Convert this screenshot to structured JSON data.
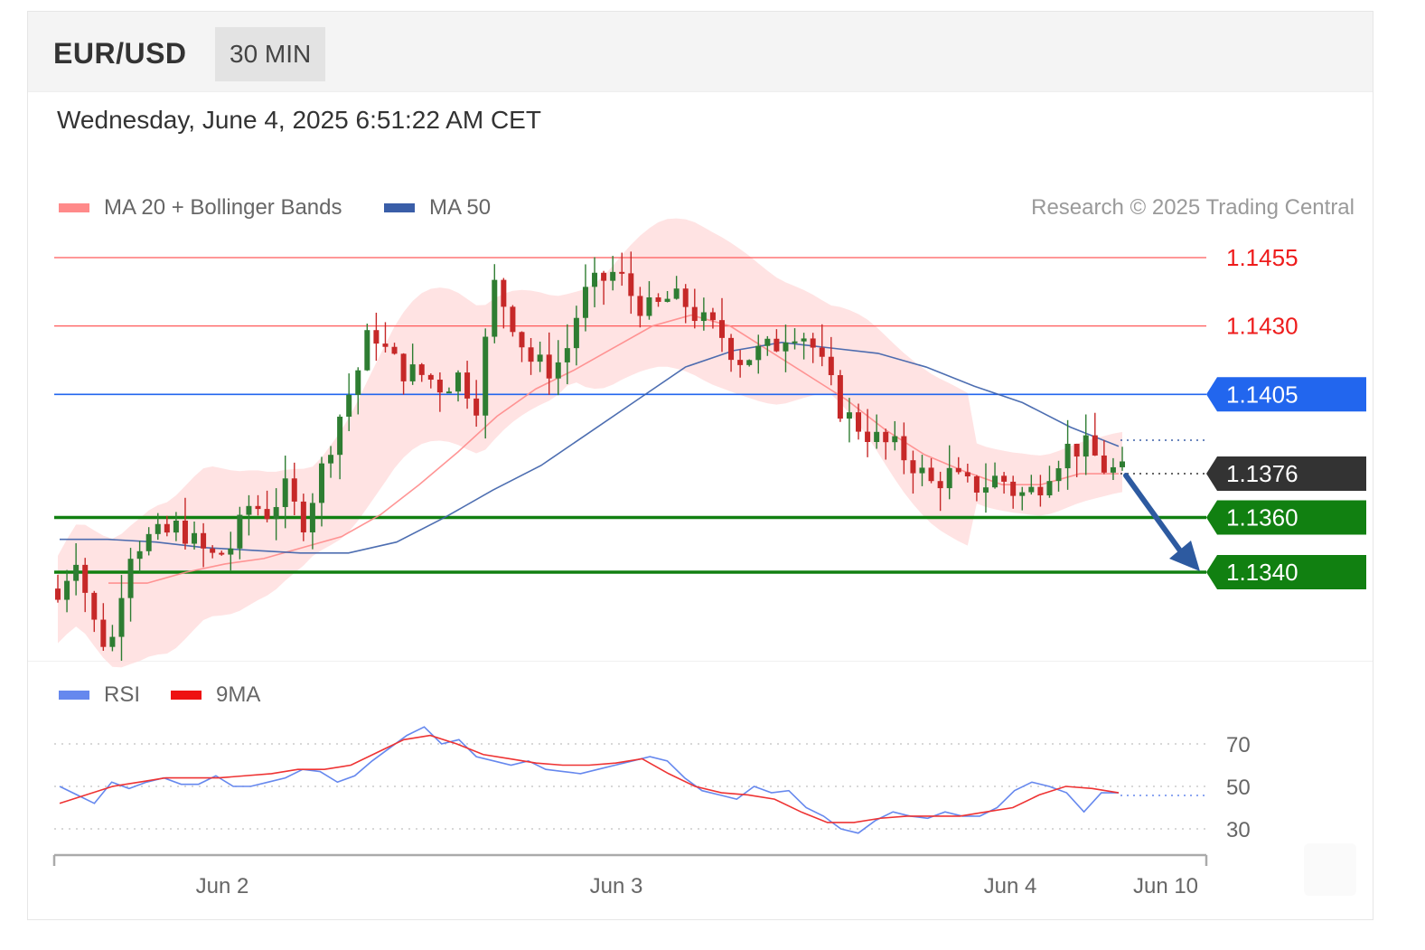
{
  "header": {
    "pair": "EUR/USD",
    "timeframe": "30 MIN"
  },
  "datetime": "Wednesday, June 4, 2025 6:51:22 AM CET",
  "legend": {
    "ma20": "MA 20 + Bollinger Bands",
    "ma50": "MA 50",
    "credit": "Research © 2025 Trading Central",
    "rsi": "RSI",
    "rsi_ma": "9MA"
  },
  "colors": {
    "ma20": "#ff8a8a",
    "ma50": "#3a5ea8",
    "band": "#ffd9d9",
    "up": "#2e7d32",
    "down": "#c62828",
    "resistance": "#ff5a5a",
    "pivot": "#2266ee",
    "support": "#118011",
    "current": "#333333",
    "arrow": "#2d5aa0",
    "rsi": "#6688ee",
    "rsi_ma": "#ee3333"
  },
  "chart_data": [
    {
      "type": "line",
      "subtype": "candlestick",
      "y_axis_range": [
        1.129,
        1.147
      ],
      "x_labels": [
        "Jun 2",
        "Jun 3",
        "Jun 4",
        "Jun 10"
      ],
      "levels": [
        {
          "label": "1.1455",
          "value": 1.1455,
          "kind": "resistance"
        },
        {
          "label": "1.1430",
          "value": 1.143,
          "kind": "resistance"
        },
        {
          "label": "1.1405",
          "value": 1.1405,
          "kind": "pivot"
        },
        {
          "label": "1.1376",
          "value": 1.1376,
          "kind": "current"
        },
        {
          "label": "1.1360",
          "value": 1.136,
          "kind": "support"
        },
        {
          "label": "1.1340",
          "value": 1.134,
          "kind": "support"
        }
      ],
      "close_path": [
        1.133,
        1.1348,
        1.1322,
        1.1311,
        1.1348,
        1.1352,
        1.1353,
        1.1357,
        1.1349,
        1.1345,
        1.135,
        1.1365,
        1.1362,
        1.137,
        1.1358,
        1.1375,
        1.1395,
        1.141,
        1.143,
        1.1418,
        1.1413,
        1.1412,
        1.1408,
        1.1412,
        1.1402,
        1.1445,
        1.1433,
        1.1418,
        1.1414,
        1.1418,
        1.144,
        1.1446,
        1.145,
        1.144,
        1.1435,
        1.144,
        1.1438,
        1.1431,
        1.1427,
        1.1418,
        1.142,
        1.1422,
        1.143,
        1.1426,
        1.1412,
        1.1398,
        1.1393,
        1.1388,
        1.1385,
        1.138,
        1.1372,
        1.1376,
        1.1371,
        1.1372,
        1.1375,
        1.1368,
        1.137,
        1.138,
        1.1386,
        1.1385,
        1.1378,
        1.1376
      ],
      "series": [
        {
          "name": "MA 20",
          "values": [
            1.1336,
            1.1336,
            1.134,
            1.1343,
            1.1345,
            1.1349,
            1.1353,
            1.1361,
            1.1372,
            1.1384,
            1.1397,
            1.1407,
            1.1414,
            1.1422,
            1.143,
            1.1434,
            1.143,
            1.1421,
            1.1412,
            1.1403,
            1.1392,
            1.1383,
            1.1377,
            1.1372,
            1.1372,
            1.1376,
            1.1376
          ]
        },
        {
          "name": "MA 50",
          "values": [
            1.1352,
            1.1352,
            1.1351,
            1.1349,
            1.1348,
            1.1347,
            1.1347,
            1.1351,
            1.136,
            1.137,
            1.1379,
            1.1391,
            1.1403,
            1.1415,
            1.1421,
            1.1424,
            1.1422,
            1.142,
            1.1415,
            1.1408,
            1.1402,
            1.1393,
            1.1386
          ]
        }
      ]
    },
    {
      "type": "line",
      "y_ticks": [
        "70",
        "50",
        "30"
      ],
      "y_axis_range": [
        20,
        80
      ],
      "series": [
        {
          "name": "RSI",
          "values": [
            50,
            46,
            42,
            52,
            49,
            52,
            54,
            51,
            51,
            55,
            50,
            50,
            52,
            54,
            58,
            57,
            52,
            55,
            62,
            68,
            74,
            78,
            70,
            72,
            64,
            62,
            60,
            62,
            58,
            57,
            56,
            58,
            60,
            62,
            64,
            62,
            54,
            48,
            46,
            44,
            50,
            47,
            48,
            40,
            36,
            30,
            28,
            34,
            38,
            36,
            35,
            38,
            36,
            36,
            40,
            48,
            52,
            50,
            47,
            38,
            47,
            47
          ]
        },
        {
          "name": "9MA",
          "values": [
            42,
            46,
            50,
            52,
            54,
            54,
            54,
            55,
            56,
            58,
            58,
            60,
            66,
            72,
            74,
            70,
            65,
            63,
            61,
            60,
            60,
            61,
            63,
            56,
            50,
            47,
            46,
            44,
            38,
            33,
            33,
            35,
            36,
            36,
            36,
            38,
            40,
            46,
            50,
            49,
            47
          ]
        }
      ]
    }
  ]
}
